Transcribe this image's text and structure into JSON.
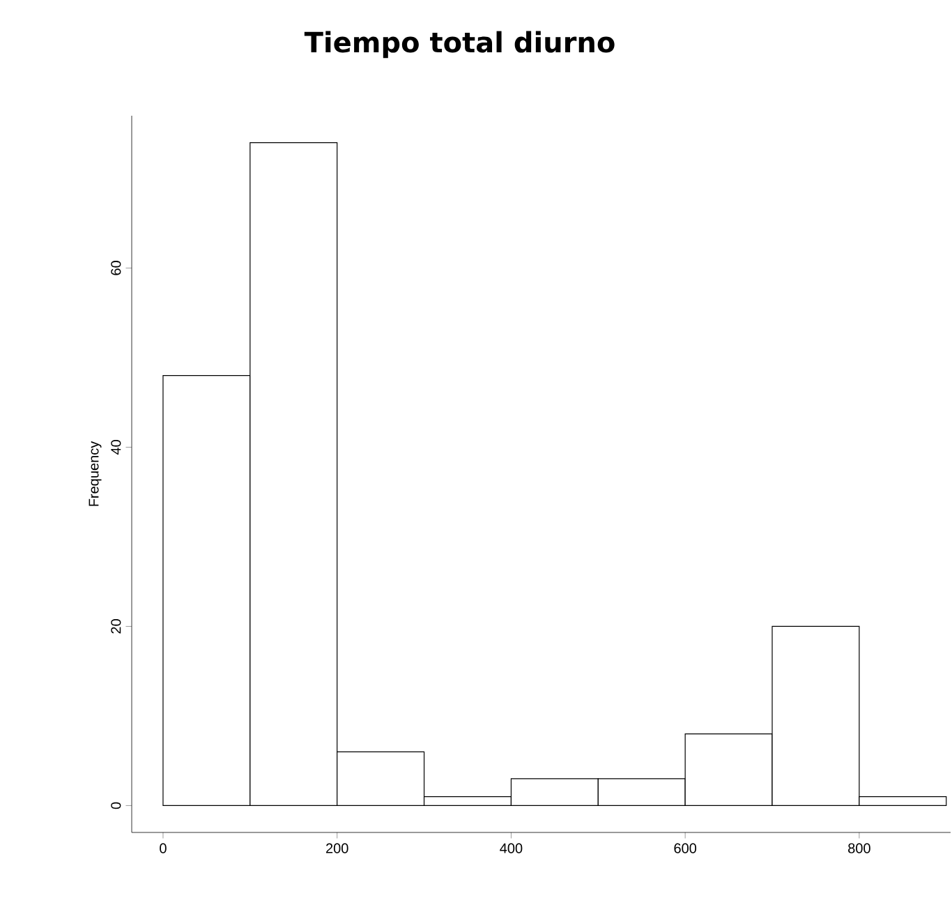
{
  "chart_data": {
    "type": "histogram",
    "title": "Tiempo total diurno",
    "ylabel": "Frequency",
    "bins": [
      0,
      100,
      200,
      300,
      400,
      500,
      600,
      700,
      800,
      900
    ],
    "values": [
      48,
      74,
      6,
      1,
      3,
      3,
      8,
      20,
      1
    ],
    "xlim": [
      -36,
      905
    ],
    "ylim": [
      -3,
      77
    ],
    "xticks": [
      0,
      200,
      400,
      600,
      800
    ],
    "yticks": [
      0,
      20,
      40,
      60
    ]
  }
}
